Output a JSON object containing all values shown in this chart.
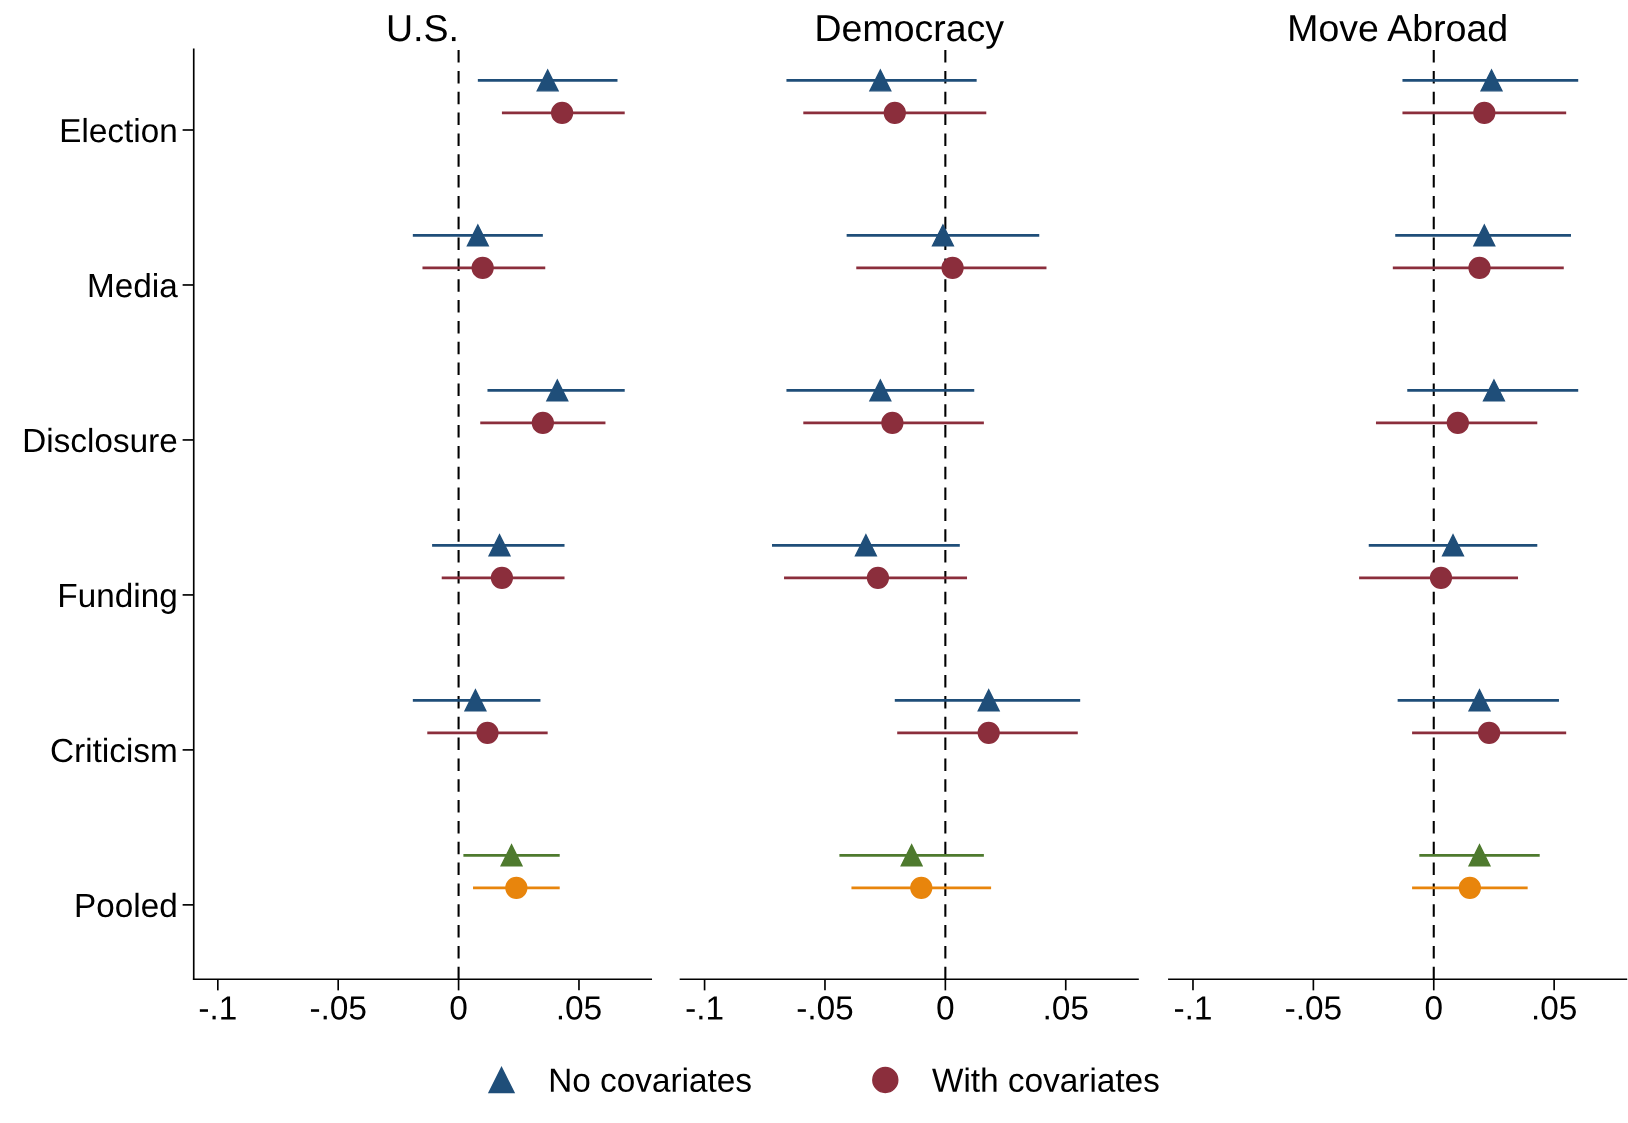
{
  "chart_data": [
    {
      "type": "scatter",
      "title": "U.S.",
      "orientation": "horizontal",
      "categories": [
        "Election",
        "Media",
        "Disclosure",
        "Funding",
        "Criticism",
        "Pooled"
      ],
      "xlim": [
        -0.11,
        0.08
      ],
      "xticks": [
        {
          "value": -0.1,
          "label": "-.1"
        },
        {
          "value": -0.05,
          "label": "-.05"
        },
        {
          "value": 0,
          "label": "0"
        },
        {
          "value": 0.05,
          "label": ".05"
        }
      ],
      "tick_labels": true,
      "legend": "bottom",
      "grid": false,
      "ref_lines": [
        {
          "axis": "x",
          "value": 0,
          "color": "#000000",
          "line_style": "dashed"
        }
      ],
      "series": [
        {
          "name": "No covariates",
          "marker": "triangle",
          "color": "#1f4e79",
          "colors": [
            "#1f4e79",
            "#1f4e79",
            "#1f4e79",
            "#1f4e79",
            "#1f4e79",
            "#4e7a2e"
          ],
          "values": [
            0.037,
            0.008,
            0.041,
            0.017,
            0.007,
            0.022
          ],
          "errors": [
            [
              0.008,
              0.066
            ],
            [
              -0.019,
              0.035
            ],
            [
              0.012,
              0.069
            ],
            [
              -0.011,
              0.044
            ],
            [
              -0.019,
              0.034
            ],
            [
              0.002,
              0.042
            ]
          ]
        },
        {
          "name": "With covariates",
          "marker": "circle",
          "color": "#8b2e3c",
          "colors": [
            "#8b2e3c",
            "#8b2e3c",
            "#8b2e3c",
            "#8b2e3c",
            "#8b2e3c",
            "#e8850c"
          ],
          "values": [
            0.043,
            0.01,
            0.035,
            0.018,
            0.012,
            0.024
          ],
          "errors": [
            [
              0.018,
              0.069
            ],
            [
              -0.015,
              0.036
            ],
            [
              0.009,
              0.061
            ],
            [
              -0.007,
              0.044
            ],
            [
              -0.013,
              0.037
            ],
            [
              0.006,
              0.042
            ]
          ]
        }
      ]
    },
    {
      "type": "scatter",
      "title": "Democracy",
      "orientation": "horizontal",
      "categories": [
        null,
        null,
        null,
        null,
        null,
        null
      ],
      "xlim": [
        -0.11,
        0.08
      ],
      "xticks": [
        {
          "value": -0.1,
          "label": "-.1"
        },
        {
          "value": -0.05,
          "label": "-.05"
        },
        {
          "value": 0,
          "label": "0"
        },
        {
          "value": 0.05,
          "label": ".05"
        }
      ],
      "tick_labels": "x",
      "grid": false,
      "ref_lines": [
        {
          "axis": "x",
          "value": 0,
          "color": "#000000",
          "line_style": "dashed"
        }
      ],
      "series": [
        {
          "marker": "triangle",
          "color": "#1f4e79",
          "colors": [
            "#1f4e79",
            "#1f4e79",
            "#1f4e79",
            "#1f4e79",
            "#1f4e79",
            "#4e7a2e"
          ],
          "values": [
            -0.027,
            -0.001,
            -0.027,
            -0.033,
            0.018,
            -0.014
          ],
          "errors": [
            [
              -0.066,
              0.013
            ],
            [
              -0.041,
              0.039
            ],
            [
              -0.066,
              0.012
            ],
            [
              -0.072,
              0.006
            ],
            [
              -0.021,
              0.056
            ],
            [
              -0.044,
              0.016
            ]
          ]
        },
        {
          "marker": "circle",
          "color": "#8b2e3c",
          "colors": [
            "#8b2e3c",
            "#8b2e3c",
            "#8b2e3c",
            "#8b2e3c",
            "#8b2e3c",
            "#e8850c"
          ],
          "values": [
            -0.021,
            0.003,
            -0.022,
            -0.028,
            0.018,
            -0.01
          ],
          "errors": [
            [
              -0.059,
              0.017
            ],
            [
              -0.037,
              0.042
            ],
            [
              -0.059,
              0.016
            ],
            [
              -0.067,
              0.009
            ],
            [
              -0.02,
              0.055
            ],
            [
              -0.039,
              0.019
            ]
          ]
        }
      ]
    },
    {
      "type": "scatter",
      "title": "Move Abroad",
      "orientation": "horizontal",
      "categories": [
        null,
        null,
        null,
        null,
        null,
        null
      ],
      "xlim": [
        -0.11,
        0.08
      ],
      "xticks": [
        {
          "value": -0.1,
          "label": "-.1"
        },
        {
          "value": -0.05,
          "label": "-.05"
        },
        {
          "value": 0,
          "label": "0"
        },
        {
          "value": 0.05,
          "label": ".05"
        }
      ],
      "tick_labels": "x",
      "grid": false,
      "ref_lines": [
        {
          "axis": "x",
          "value": 0,
          "color": "#000000",
          "line_style": "dashed"
        }
      ],
      "series": [
        {
          "marker": "triangle",
          "color": "#1f4e79",
          "colors": [
            "#1f4e79",
            "#1f4e79",
            "#1f4e79",
            "#1f4e79",
            "#1f4e79",
            "#4e7a2e"
          ],
          "values": [
            0.024,
            0.021,
            0.025,
            0.008,
            0.019,
            0.019
          ],
          "errors": [
            [
              -0.013,
              0.06
            ],
            [
              -0.016,
              0.057
            ],
            [
              -0.011,
              0.06
            ],
            [
              -0.027,
              0.043
            ],
            [
              -0.015,
              0.052
            ],
            [
              -0.006,
              0.044
            ]
          ]
        },
        {
          "marker": "circle",
          "color": "#8b2e3c",
          "colors": [
            "#8b2e3c",
            "#8b2e3c",
            "#8b2e3c",
            "#8b2e3c",
            "#8b2e3c",
            "#e8850c"
          ],
          "values": [
            0.021,
            0.019,
            0.01,
            0.003,
            0.023,
            0.015
          ],
          "errors": [
            [
              -0.013,
              0.055
            ],
            [
              -0.017,
              0.054
            ],
            [
              -0.024,
              0.043
            ],
            [
              -0.031,
              0.035
            ],
            [
              -0.009,
              0.055
            ],
            [
              -0.009,
              0.039
            ]
          ]
        }
      ]
    }
  ]
}
